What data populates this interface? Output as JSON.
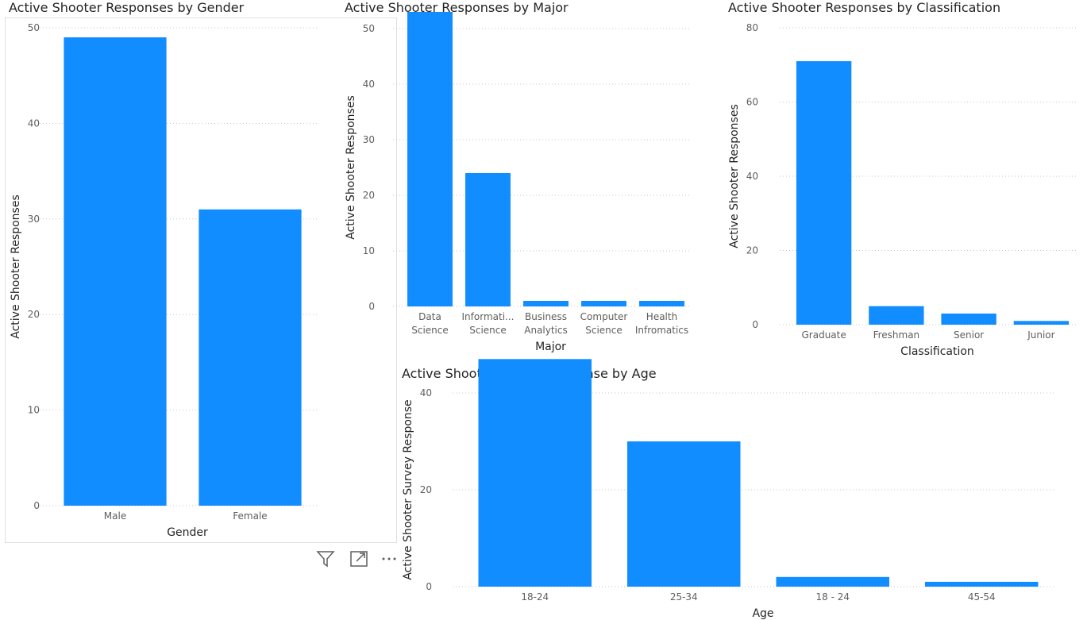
{
  "colors": {
    "bar": "#118dff",
    "text": "#252423",
    "tick": "#605e5c"
  },
  "header_icons": [
    "filter-icon",
    "focus-mode-icon",
    "more-options-icon"
  ],
  "chart_data": [
    {
      "id": "gender",
      "type": "bar",
      "title": "Active Shooter Responses by Gender",
      "xlabel": "Gender",
      "ylabel": "Active Shooter Responses",
      "categories": [
        [
          "Male"
        ],
        [
          "Female"
        ]
      ],
      "values": [
        49,
        31
      ],
      "ylim": [
        0,
        50
      ],
      "yticks": [
        0,
        10,
        20,
        30,
        40,
        50
      ],
      "grid": true
    },
    {
      "id": "major",
      "type": "bar",
      "title": "Active Shooter Responses by Major",
      "xlabel": "Major",
      "ylabel": "Active Shooter Responses",
      "categories": [
        [
          "Data",
          "Science"
        ],
        [
          "Informati...",
          "Science"
        ],
        [
          "Business",
          "Analytics"
        ],
        [
          "Computer",
          "Science"
        ],
        [
          "Health",
          "Infromatics"
        ]
      ],
      "values": [
        53,
        24,
        1,
        1,
        1
      ],
      "ylim": [
        0,
        55
      ],
      "yticks": [
        0,
        10,
        20,
        30,
        40,
        50
      ],
      "grid": true
    },
    {
      "id": "classification",
      "type": "bar",
      "title": "Active Shooter Responses by Classification",
      "xlabel": "Classification",
      "ylabel": "Active Shooter Responses",
      "categories": [
        [
          "Graduate"
        ],
        [
          "Freshman"
        ],
        [
          "Senior"
        ],
        [
          "Junior"
        ]
      ],
      "values": [
        71,
        5,
        3,
        1
      ],
      "ylim": [
        0,
        80
      ],
      "yticks": [
        0,
        20,
        40,
        60,
        80
      ],
      "grid": true
    },
    {
      "id": "age",
      "type": "bar",
      "title": "Active Shooter Survey Response by Age",
      "xlabel": "Age",
      "ylabel": "Active Shooter Survey Response",
      "categories": [
        [
          "18-24"
        ],
        [
          "25-34"
        ],
        [
          "18 - 24"
        ],
        [
          "45-54"
        ]
      ],
      "values": [
        47,
        30,
        2,
        1
      ],
      "ylim": [
        0,
        50
      ],
      "yticks": [
        0,
        20,
        40
      ],
      "grid": true
    }
  ]
}
